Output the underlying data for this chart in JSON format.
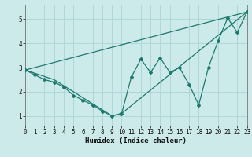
{
  "xlabel": "Humidex (Indice chaleur)",
  "background_color": "#cceaea",
  "grid_color": "#aad4d4",
  "line_color": "#1a7a6e",
  "xlim": [
    0,
    23
  ],
  "ylim": [
    0.6,
    5.6
  ],
  "yticks": [
    1,
    2,
    3,
    4,
    5
  ],
  "xticks": [
    0,
    1,
    2,
    3,
    4,
    5,
    6,
    7,
    8,
    9,
    10,
    11,
    12,
    13,
    14,
    15,
    16,
    17,
    18,
    19,
    20,
    21,
    22,
    23
  ],
  "line1_x": [
    0,
    1,
    2,
    3,
    4,
    5,
    6,
    7,
    8,
    9,
    10,
    11,
    12,
    13,
    14,
    15,
    16,
    17,
    18,
    19,
    20,
    21,
    22,
    23
  ],
  "line1_y": [
    2.9,
    2.7,
    2.5,
    2.4,
    2.2,
    1.85,
    1.65,
    1.45,
    1.2,
    1.0,
    1.1,
    2.6,
    3.35,
    2.8,
    3.4,
    2.8,
    3.0,
    2.3,
    1.45,
    3.0,
    4.1,
    5.05,
    4.45,
    5.3
  ],
  "line2_x": [
    0,
    23
  ],
  "line2_y": [
    2.9,
    5.3
  ],
  "line3_x": [
    0,
    3,
    9,
    10,
    23
  ],
  "line3_y": [
    2.9,
    2.5,
    1.0,
    1.1,
    5.3
  ],
  "xlabel_fontsize": 6.5,
  "tick_fontsize": 5.5
}
